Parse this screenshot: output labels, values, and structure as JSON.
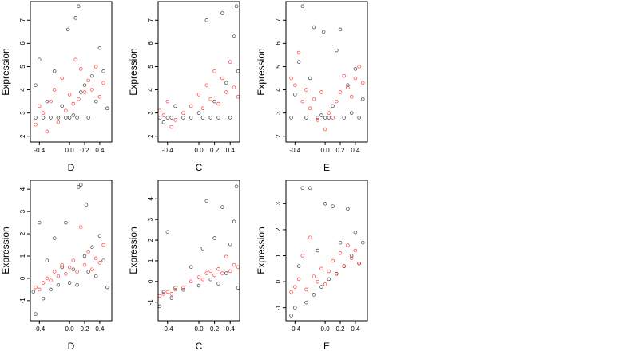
{
  "chart_data": [
    {
      "type": "scatter",
      "title": "",
      "xlabel": "D",
      "ylabel": "Expression",
      "xlim": [
        -0.52,
        0.56
      ],
      "ylim": [
        1.75,
        7.8
      ],
      "xticks": [
        -0.4,
        0.0,
        0.2,
        0.4
      ],
      "yticks": [
        2,
        3,
        4,
        5,
        6,
        7
      ],
      "series": [
        {
          "color": "#000000",
          "points": [
            [
              -0.45,
              2.8
            ],
            [
              -0.45,
              4.2
            ],
            [
              -0.4,
              5.3
            ],
            [
              -0.35,
              2.8
            ],
            [
              -0.3,
              3.5
            ],
            [
              -0.25,
              2.8
            ],
            [
              -0.2,
              4.8
            ],
            [
              -0.15,
              2.8
            ],
            [
              -0.1,
              3.3
            ],
            [
              -0.05,
              2.8
            ],
            [
              -0.02,
              6.6
            ],
            [
              0.0,
              2.8
            ],
            [
              0.05,
              2.9
            ],
            [
              0.08,
              7.1
            ],
            [
              0.1,
              2.8
            ],
            [
              0.12,
              7.6
            ],
            [
              0.15,
              3.9
            ],
            [
              0.2,
              4.2
            ],
            [
              0.25,
              2.8
            ],
            [
              0.3,
              4.6
            ],
            [
              0.35,
              3.5
            ],
            [
              0.4,
              5.8
            ],
            [
              0.45,
              4.8
            ],
            [
              0.5,
              3.2
            ]
          ]
        },
        {
          "color": "#ff0000",
          "points": [
            [
              -0.45,
              2.5
            ],
            [
              -0.4,
              3.3
            ],
            [
              -0.35,
              3.0
            ],
            [
              -0.3,
              2.2
            ],
            [
              -0.25,
              3.5
            ],
            [
              -0.2,
              4.0
            ],
            [
              -0.15,
              2.6
            ],
            [
              -0.1,
              4.5
            ],
            [
              -0.05,
              3.1
            ],
            [
              0.0,
              3.8
            ],
            [
              0.05,
              3.4
            ],
            [
              0.08,
              5.3
            ],
            [
              0.12,
              3.6
            ],
            [
              0.15,
              4.9
            ],
            [
              0.2,
              3.9
            ],
            [
              0.25,
              4.4
            ],
            [
              0.3,
              4.0
            ],
            [
              0.35,
              5.0
            ],
            [
              0.4,
              3.7
            ],
            [
              0.45,
              4.3
            ]
          ]
        }
      ]
    },
    {
      "type": "scatter",
      "title": "",
      "xlabel": "C",
      "ylabel": "Expression",
      "xlim": [
        -0.52,
        0.52
      ],
      "ylim": [
        1.75,
        7.8
      ],
      "xticks": [
        -0.4,
        0.0,
        0.2,
        0.4
      ],
      "yticks": [
        2,
        3,
        4,
        5,
        6,
        7
      ],
      "series": [
        {
          "color": "#000000",
          "points": [
            [
              -0.5,
              2.8
            ],
            [
              -0.45,
              2.6
            ],
            [
              -0.4,
              2.8
            ],
            [
              -0.35,
              2.8
            ],
            [
              -0.3,
              3.3
            ],
            [
              -0.2,
              2.8
            ],
            [
              -0.1,
              2.8
            ],
            [
              0.0,
              3.0
            ],
            [
              0.05,
              2.8
            ],
            [
              0.1,
              7.0
            ],
            [
              0.15,
              2.8
            ],
            [
              0.2,
              3.5
            ],
            [
              0.25,
              2.8
            ],
            [
              0.3,
              7.3
            ],
            [
              0.35,
              4.3
            ],
            [
              0.4,
              2.8
            ],
            [
              0.45,
              6.3
            ],
            [
              0.48,
              7.6
            ],
            [
              0.5,
              4.8
            ]
          ]
        },
        {
          "color": "#ff0000",
          "points": [
            [
              -0.5,
              3.1
            ],
            [
              -0.45,
              2.9
            ],
            [
              -0.4,
              3.5
            ],
            [
              -0.35,
              2.4
            ],
            [
              -0.3,
              2.7
            ],
            [
              -0.2,
              3.0
            ],
            [
              -0.1,
              3.3
            ],
            [
              0.0,
              3.8
            ],
            [
              0.05,
              3.2
            ],
            [
              0.1,
              4.2
            ],
            [
              0.15,
              3.6
            ],
            [
              0.2,
              4.8
            ],
            [
              0.25,
              3.4
            ],
            [
              0.3,
              4.5
            ],
            [
              0.35,
              3.9
            ],
            [
              0.4,
              5.2
            ],
            [
              0.45,
              4.1
            ],
            [
              0.5,
              3.7
            ]
          ]
        }
      ]
    },
    {
      "type": "scatter",
      "title": "",
      "xlabel": "E",
      "ylabel": "Expression",
      "xlim": [
        -0.52,
        0.56
      ],
      "ylim": [
        1.75,
        7.8
      ],
      "xticks": [
        -0.4,
        0.0,
        0.2,
        0.4
      ],
      "yticks": [
        2,
        3,
        4,
        5,
        6,
        7
      ],
      "series": [
        {
          "color": "#000000",
          "points": [
            [
              -0.45,
              2.8
            ],
            [
              -0.4,
              3.8
            ],
            [
              -0.35,
              5.2
            ],
            [
              -0.3,
              7.6
            ],
            [
              -0.25,
              2.8
            ],
            [
              -0.2,
              4.5
            ],
            [
              -0.15,
              6.7
            ],
            [
              -0.1,
              2.8
            ],
            [
              -0.05,
              2.9
            ],
            [
              -0.02,
              6.5
            ],
            [
              0.0,
              2.8
            ],
            [
              0.05,
              2.8
            ],
            [
              0.1,
              3.3
            ],
            [
              0.15,
              5.7
            ],
            [
              0.2,
              6.6
            ],
            [
              0.25,
              2.8
            ],
            [
              0.3,
              4.2
            ],
            [
              0.35,
              3.0
            ],
            [
              0.4,
              4.9
            ],
            [
              0.45,
              2.8
            ],
            [
              0.5,
              3.6
            ]
          ]
        },
        {
          "color": "#ff0000",
          "points": [
            [
              -0.45,
              4.5
            ],
            [
              -0.4,
              4.2
            ],
            [
              -0.35,
              5.6
            ],
            [
              -0.3,
              3.5
            ],
            [
              -0.25,
              4.0
            ],
            [
              -0.2,
              3.2
            ],
            [
              -0.15,
              3.6
            ],
            [
              -0.1,
              2.7
            ],
            [
              -0.05,
              3.9
            ],
            [
              0.0,
              2.3
            ],
            [
              0.05,
              3.0
            ],
            [
              0.1,
              2.8
            ],
            [
              0.15,
              3.5
            ],
            [
              0.2,
              3.9
            ],
            [
              0.25,
              4.6
            ],
            [
              0.3,
              4.1
            ],
            [
              0.35,
              3.7
            ],
            [
              0.4,
              4.5
            ],
            [
              0.45,
              5.0
            ],
            [
              0.5,
              4.3
            ]
          ]
        }
      ]
    },
    {
      "type": "scatter",
      "title": "",
      "xlabel": "D",
      "ylabel": "Expression",
      "xlim": [
        -0.52,
        0.56
      ],
      "ylim": [
        -1.9,
        4.4
      ],
      "xticks": [
        -0.4,
        0.0,
        0.2,
        0.4
      ],
      "yticks": [
        -1,
        0,
        1,
        2,
        3,
        4
      ],
      "series": [
        {
          "color": "#000000",
          "points": [
            [
              -0.48,
              -0.6
            ],
            [
              -0.45,
              -1.6
            ],
            [
              -0.4,
              2.5
            ],
            [
              -0.35,
              -0.9
            ],
            [
              -0.3,
              0.8
            ],
            [
              -0.25,
              -0.5
            ],
            [
              -0.2,
              1.8
            ],
            [
              -0.15,
              -0.3
            ],
            [
              -0.1,
              0.5
            ],
            [
              -0.05,
              2.5
            ],
            [
              0.0,
              -0.2
            ],
            [
              0.05,
              0.4
            ],
            [
              0.1,
              -0.3
            ],
            [
              0.12,
              4.1
            ],
            [
              0.15,
              4.2
            ],
            [
              0.2,
              1.0
            ],
            [
              0.22,
              3.3
            ],
            [
              0.25,
              0.3
            ],
            [
              0.3,
              1.4
            ],
            [
              0.35,
              0.1
            ],
            [
              0.4,
              1.9
            ],
            [
              0.45,
              0.8
            ],
            [
              0.5,
              -0.4
            ]
          ]
        },
        {
          "color": "#ff0000",
          "points": [
            [
              -0.45,
              -0.4
            ],
            [
              -0.4,
              -0.5
            ],
            [
              -0.35,
              -0.2
            ],
            [
              -0.3,
              0.0
            ],
            [
              -0.25,
              -0.1
            ],
            [
              -0.2,
              0.3
            ],
            [
              -0.15,
              0.1
            ],
            [
              -0.1,
              0.6
            ],
            [
              -0.05,
              0.2
            ],
            [
              0.0,
              0.5
            ],
            [
              0.05,
              0.8
            ],
            [
              0.1,
              0.3
            ],
            [
              0.15,
              2.3
            ],
            [
              0.2,
              0.6
            ],
            [
              0.25,
              1.2
            ],
            [
              0.3,
              0.4
            ],
            [
              0.35,
              0.9
            ],
            [
              0.4,
              0.7
            ],
            [
              0.45,
              1.5
            ]
          ]
        }
      ]
    },
    {
      "type": "scatter",
      "title": "",
      "xlabel": "C",
      "ylabel": "Expression",
      "xlim": [
        -0.52,
        0.52
      ],
      "ylim": [
        -1.9,
        4.9
      ],
      "xticks": [
        -0.4,
        0.0,
        0.2,
        0.4
      ],
      "yticks": [
        -1,
        0,
        1,
        2,
        3,
        4
      ],
      "series": [
        {
          "color": "#000000",
          "points": [
            [
              -0.5,
              -1.2
            ],
            [
              -0.45,
              -0.5
            ],
            [
              -0.4,
              2.4
            ],
            [
              -0.35,
              -0.8
            ],
            [
              -0.3,
              -0.3
            ],
            [
              -0.2,
              -0.4
            ],
            [
              -0.1,
              0.7
            ],
            [
              0.0,
              -0.2
            ],
            [
              0.05,
              1.6
            ],
            [
              0.1,
              3.9
            ],
            [
              0.15,
              0.1
            ],
            [
              0.2,
              2.1
            ],
            [
              0.25,
              -0.1
            ],
            [
              0.3,
              3.6
            ],
            [
              0.35,
              0.4
            ],
            [
              0.4,
              1.8
            ],
            [
              0.45,
              2.9
            ],
            [
              0.48,
              4.6
            ],
            [
              0.5,
              -0.3
            ]
          ]
        },
        {
          "color": "#ff0000",
          "points": [
            [
              -0.5,
              -0.7
            ],
            [
              -0.45,
              -0.6
            ],
            [
              -0.4,
              -0.5
            ],
            [
              -0.35,
              -0.6
            ],
            [
              -0.3,
              -0.4
            ],
            [
              -0.2,
              -0.3
            ],
            [
              -0.1,
              0.0
            ],
            [
              0.0,
              0.2
            ],
            [
              0.05,
              0.1
            ],
            [
              0.1,
              0.4
            ],
            [
              0.15,
              0.5
            ],
            [
              0.2,
              0.3
            ],
            [
              0.25,
              0.6
            ],
            [
              0.3,
              0.4
            ],
            [
              0.35,
              1.2
            ],
            [
              0.4,
              0.5
            ],
            [
              0.45,
              0.8
            ],
            [
              0.5,
              0.7
            ]
          ]
        }
      ]
    },
    {
      "type": "scatter",
      "title": "",
      "xlabel": "E",
      "ylabel": "Expression",
      "xlim": [
        -0.52,
        0.56
      ],
      "ylim": [
        -1.5,
        3.9
      ],
      "xticks": [
        -0.4,
        0.0,
        0.2,
        0.4
      ],
      "yticks": [
        -1,
        0,
        1,
        2,
        3
      ],
      "series": [
        {
          "color": "#000000",
          "points": [
            [
              -0.45,
              -1.3
            ],
            [
              -0.4,
              -1.0
            ],
            [
              -0.35,
              0.6
            ],
            [
              -0.3,
              3.6
            ],
            [
              -0.25,
              -0.8
            ],
            [
              -0.2,
              3.6
            ],
            [
              -0.15,
              -0.5
            ],
            [
              -0.1,
              1.2
            ],
            [
              -0.05,
              -0.2
            ],
            [
              0.0,
              3.0
            ],
            [
              0.05,
              0.1
            ],
            [
              0.1,
              2.9
            ],
            [
              0.15,
              0.3
            ],
            [
              0.2,
              1.5
            ],
            [
              0.25,
              0.6
            ],
            [
              0.3,
              2.8
            ],
            [
              0.35,
              1.0
            ],
            [
              0.4,
              1.9
            ],
            [
              0.45,
              0.7
            ],
            [
              0.5,
              1.5
            ]
          ]
        },
        {
          "color": "#ff0000",
          "points": [
            [
              -0.45,
              -0.4
            ],
            [
              -0.4,
              -0.2
            ],
            [
              -0.35,
              0.1
            ],
            [
              -0.3,
              1.0
            ],
            [
              -0.25,
              -0.3
            ],
            [
              -0.2,
              1.7
            ],
            [
              -0.15,
              0.2
            ],
            [
              -0.1,
              0.0
            ],
            [
              -0.05,
              0.5
            ],
            [
              0.0,
              -0.1
            ],
            [
              0.05,
              0.4
            ],
            [
              0.1,
              0.8
            ],
            [
              0.15,
              0.3
            ],
            [
              0.2,
              1.1
            ],
            [
              0.25,
              0.6
            ],
            [
              0.3,
              1.4
            ],
            [
              0.35,
              0.9
            ],
            [
              0.4,
              1.2
            ],
            [
              0.45,
              0.7
            ]
          ]
        }
      ]
    }
  ]
}
